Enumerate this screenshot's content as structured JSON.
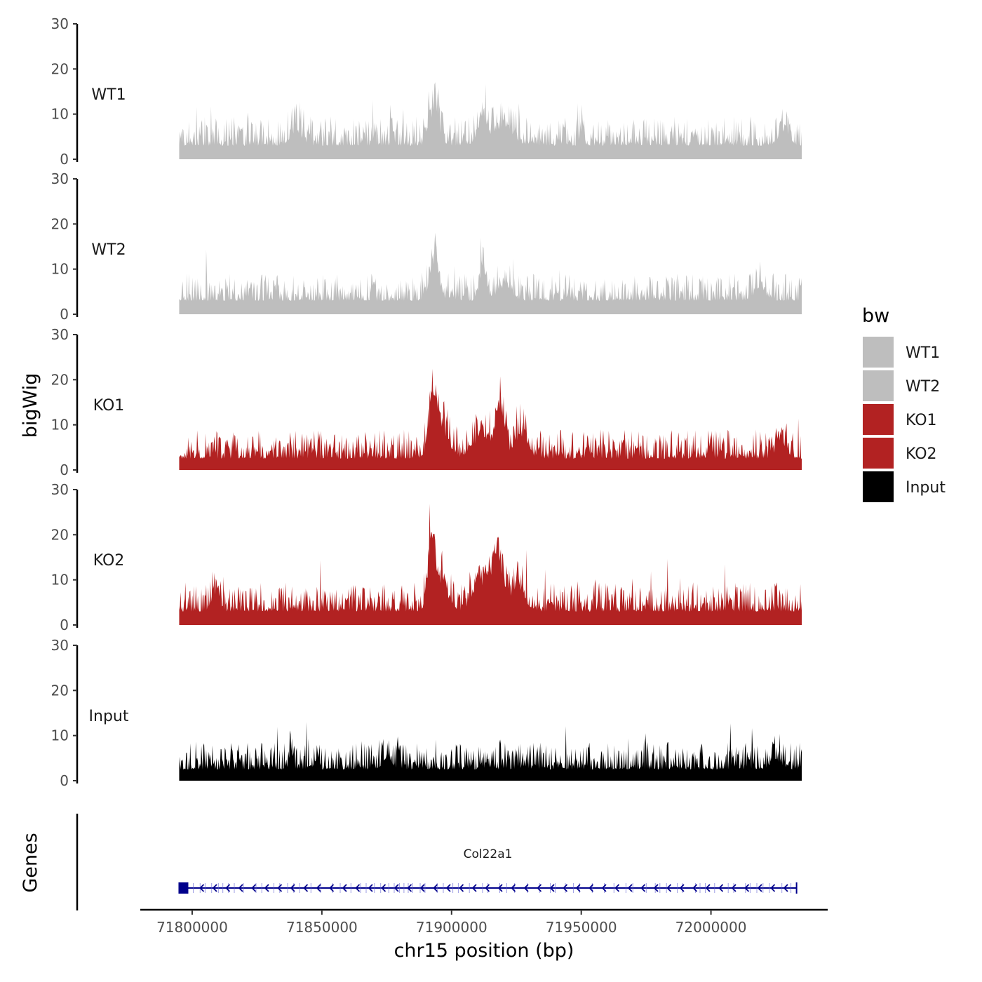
{
  "chart_data": {
    "type": "area",
    "title": "",
    "ylabel": "bigWig",
    "xlabel": "chr15 position (bp)",
    "genes_label": "Genes",
    "xlim": [
      71780000,
      72045000
    ],
    "data_range": [
      71795000,
      72035000
    ],
    "x_ticks": [
      71800000,
      71850000,
      71900000,
      71950000,
      72000000
    ],
    "x_tick_labels": [
      "71800000",
      "71850000",
      "71900000",
      "71950000",
      "72000000"
    ],
    "ylim": [
      0,
      30
    ],
    "y_ticks": [
      0,
      10,
      20,
      30
    ],
    "y_tick_labels": [
      "0",
      "10",
      "20",
      "30"
    ],
    "series": [
      {
        "name": "WT1",
        "color": "#bebebe",
        "base": 3,
        "noise": 6.5,
        "seed": 11,
        "peaks": [
          [
            71893500,
            12,
            2500
          ],
          [
            71912000,
            10,
            2000
          ],
          [
            71920000,
            6,
            5000
          ],
          [
            71840000,
            4,
            3000
          ],
          [
            72028000,
            4,
            3000
          ]
        ]
      },
      {
        "name": "WT2",
        "color": "#bebebe",
        "base": 3,
        "noise": 6,
        "seed": 23,
        "peaks": [
          [
            71893500,
            11,
            2500
          ],
          [
            71912000,
            11,
            1500
          ],
          [
            71920000,
            4,
            4000
          ],
          [
            72019000,
            4,
            3000
          ]
        ]
      },
      {
        "name": "KO1",
        "color": "#b22222",
        "base": 2.5,
        "noise": 6.5,
        "seed": 37,
        "peaks": [
          [
            71893000,
            16,
            2500
          ],
          [
            71897000,
            7,
            3500
          ],
          [
            71919000,
            14,
            2500
          ],
          [
            71912000,
            7,
            5000
          ],
          [
            71927000,
            8,
            3000
          ],
          [
            72027000,
            6,
            2500
          ]
        ]
      },
      {
        "name": "KO2",
        "color": "#b22222",
        "base": 3,
        "noise": 6.5,
        "seed": 53,
        "peaks": [
          [
            71892000,
            20,
            1800
          ],
          [
            71896000,
            9,
            3500
          ],
          [
            71918000,
            15,
            3000
          ],
          [
            71912000,
            8,
            5000
          ],
          [
            71926000,
            8,
            3000
          ],
          [
            71809000,
            6,
            2000
          ]
        ]
      },
      {
        "name": "Input",
        "color": "#000000",
        "base": 2.5,
        "noise": 6,
        "seed": 71,
        "peaks": [
          [
            71838000,
            5,
            1000
          ],
          [
            71875000,
            3,
            2500
          ],
          [
            72025000,
            3,
            2500
          ]
        ]
      }
    ],
    "genes": [
      {
        "name": "Col22a1",
        "start": 71795000,
        "end": 72033000,
        "strand": "-",
        "color": "#00008b"
      }
    ],
    "legend": {
      "title": "bw",
      "placement": "right",
      "items": [
        {
          "label": "WT1",
          "color": "#bebebe"
        },
        {
          "label": "WT2",
          "color": "#bebebe"
        },
        {
          "label": "KO1",
          "color": "#b22222"
        },
        {
          "label": "KO2",
          "color": "#b22222"
        },
        {
          "label": "Input",
          "color": "#000000"
        }
      ]
    }
  }
}
